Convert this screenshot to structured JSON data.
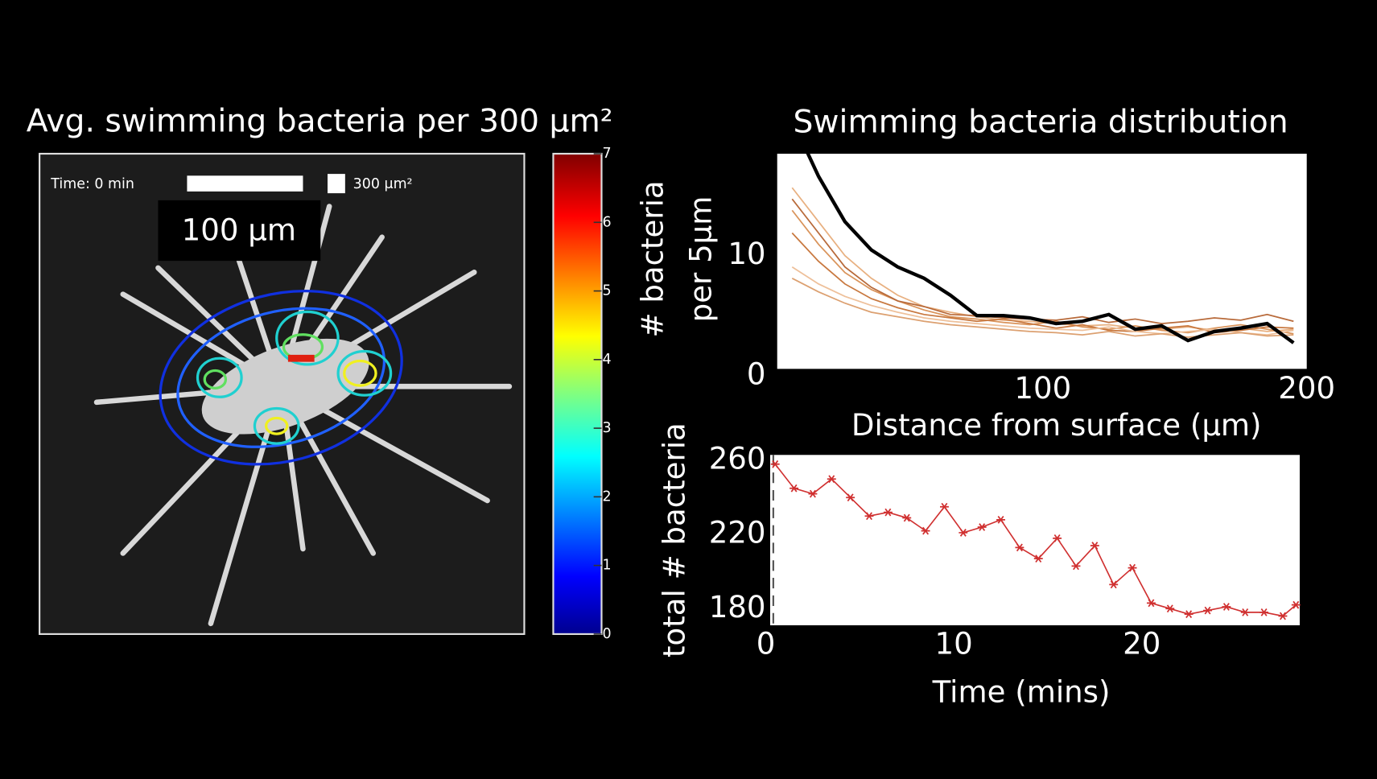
{
  "image_panel": {
    "title": "Avg. swimming bacteria per 300 μm²",
    "time_label": "Time: 0 min",
    "area_label": "300 μm²",
    "scale_bar_label": "100 μm",
    "colorbar": {
      "ylim": [
        0,
        7
      ],
      "yticks": [
        0,
        1,
        2,
        3,
        4,
        5,
        6,
        7
      ]
    }
  },
  "chart_data": [
    {
      "type": "line",
      "title": "Swimming bacteria distribution",
      "ylabel": [
        "# bacteria",
        "per 5μm"
      ],
      "xlabel": "Distance from surface (μm)",
      "x": [
        5,
        15,
        25,
        35,
        45,
        55,
        65,
        75,
        85,
        95,
        105,
        115,
        125,
        135,
        145,
        155,
        165,
        175,
        185,
        195
      ],
      "xlim": [
        0,
        200
      ],
      "xticks": [
        100,
        200
      ],
      "ylim": [
        0,
        19
      ],
      "yticks": [
        0,
        10
      ],
      "series": [
        {
          "color": "#e8b080",
          "values": [
            16,
            13,
            10,
            8,
            6.5,
            5.5,
            5,
            4.6,
            4.3,
            4.2,
            4,
            3.8,
            3.9,
            3.6,
            3.5,
            3.7,
            3.4,
            3.6,
            3.3,
            3.5
          ]
        },
        {
          "color": "#d9935a",
          "values": [
            14,
            11,
            8.5,
            7,
            6,
            5.2,
            4.6,
            4.4,
            4.1,
            3.9,
            4.2,
            3.7,
            3.5,
            3.8,
            3.4,
            3.2,
            3.6,
            3.9,
            3.5,
            3.1
          ]
        },
        {
          "color": "#c8783f",
          "values": [
            12,
            9.5,
            7.5,
            6.2,
            5.4,
            4.8,
            4.5,
            4.2,
            4.4,
            4,
            3.6,
            3.9,
            3.4,
            3.3,
            3.6,
            3.8,
            3.2,
            3.4,
            3.7,
            3.6
          ]
        },
        {
          "color": "#eec09a",
          "values": [
            9,
            7.5,
            6.4,
            5.6,
            5,
            4.5,
            4.2,
            4,
            3.8,
            3.6,
            3.5,
            3.4,
            3.7,
            3.3,
            3.1,
            3.3,
            3.5,
            3.2,
            3,
            3.4
          ]
        },
        {
          "color": "#b86a3a",
          "values": [
            15,
            12,
            9,
            7.2,
            6,
            5.5,
            4.8,
            4.7,
            4.5,
            4.4,
            4.3,
            4.6,
            4.1,
            4.4,
            4,
            4.2,
            4.5,
            4.3,
            4.8,
            4.2
          ]
        },
        {
          "color": "#dca070",
          "values": [
            8,
            6.8,
            5.8,
            5,
            4.6,
            4.2,
            3.9,
            3.7,
            3.5,
            3.3,
            3.2,
            3,
            3.3,
            2.9,
            3.1,
            2.8,
            3,
            3.2,
            2.9,
            3
          ]
        },
        {
          "color": "#000000",
          "values": [
            22,
            17,
            13,
            10.5,
            9,
            8,
            6.5,
            4.7,
            4.7,
            4.5,
            4,
            4.2,
            4.8,
            3.5,
            3.8,
            2.5,
            3.3,
            3.6,
            4,
            2.3
          ]
        }
      ]
    },
    {
      "type": "line",
      "xlabel": "Time (mins)",
      "ylabel": [
        "total # bacteria"
      ],
      "x": [
        0.5,
        1.5,
        2.5,
        3.5,
        4.5,
        5.5,
        6.5,
        7.5,
        8.5,
        9.5,
        10.5,
        11.5,
        12.5,
        13.5,
        14.5,
        15.5,
        16.5,
        17.5,
        18.5,
        19.5,
        20.5,
        21.5,
        22.5,
        23.5,
        24.5,
        25.5,
        26.5,
        27.5,
        28.2
      ],
      "xlim": [
        0,
        28.4
      ],
      "xticks": [
        0,
        10,
        20
      ],
      "ylim": [
        171,
        263
      ],
      "yticks": [
        180,
        220,
        260
      ],
      "vline": 0.4,
      "series": [
        {
          "color": "#d03030",
          "marker": "asterisk",
          "values": [
            258,
            245,
            242,
            250,
            240,
            230,
            232,
            229,
            222,
            235,
            221,
            224,
            228,
            213,
            207,
            218,
            203,
            214,
            193,
            202,
            183,
            180,
            177,
            179,
            181,
            178,
            178,
            176,
            182
          ]
        }
      ]
    }
  ]
}
